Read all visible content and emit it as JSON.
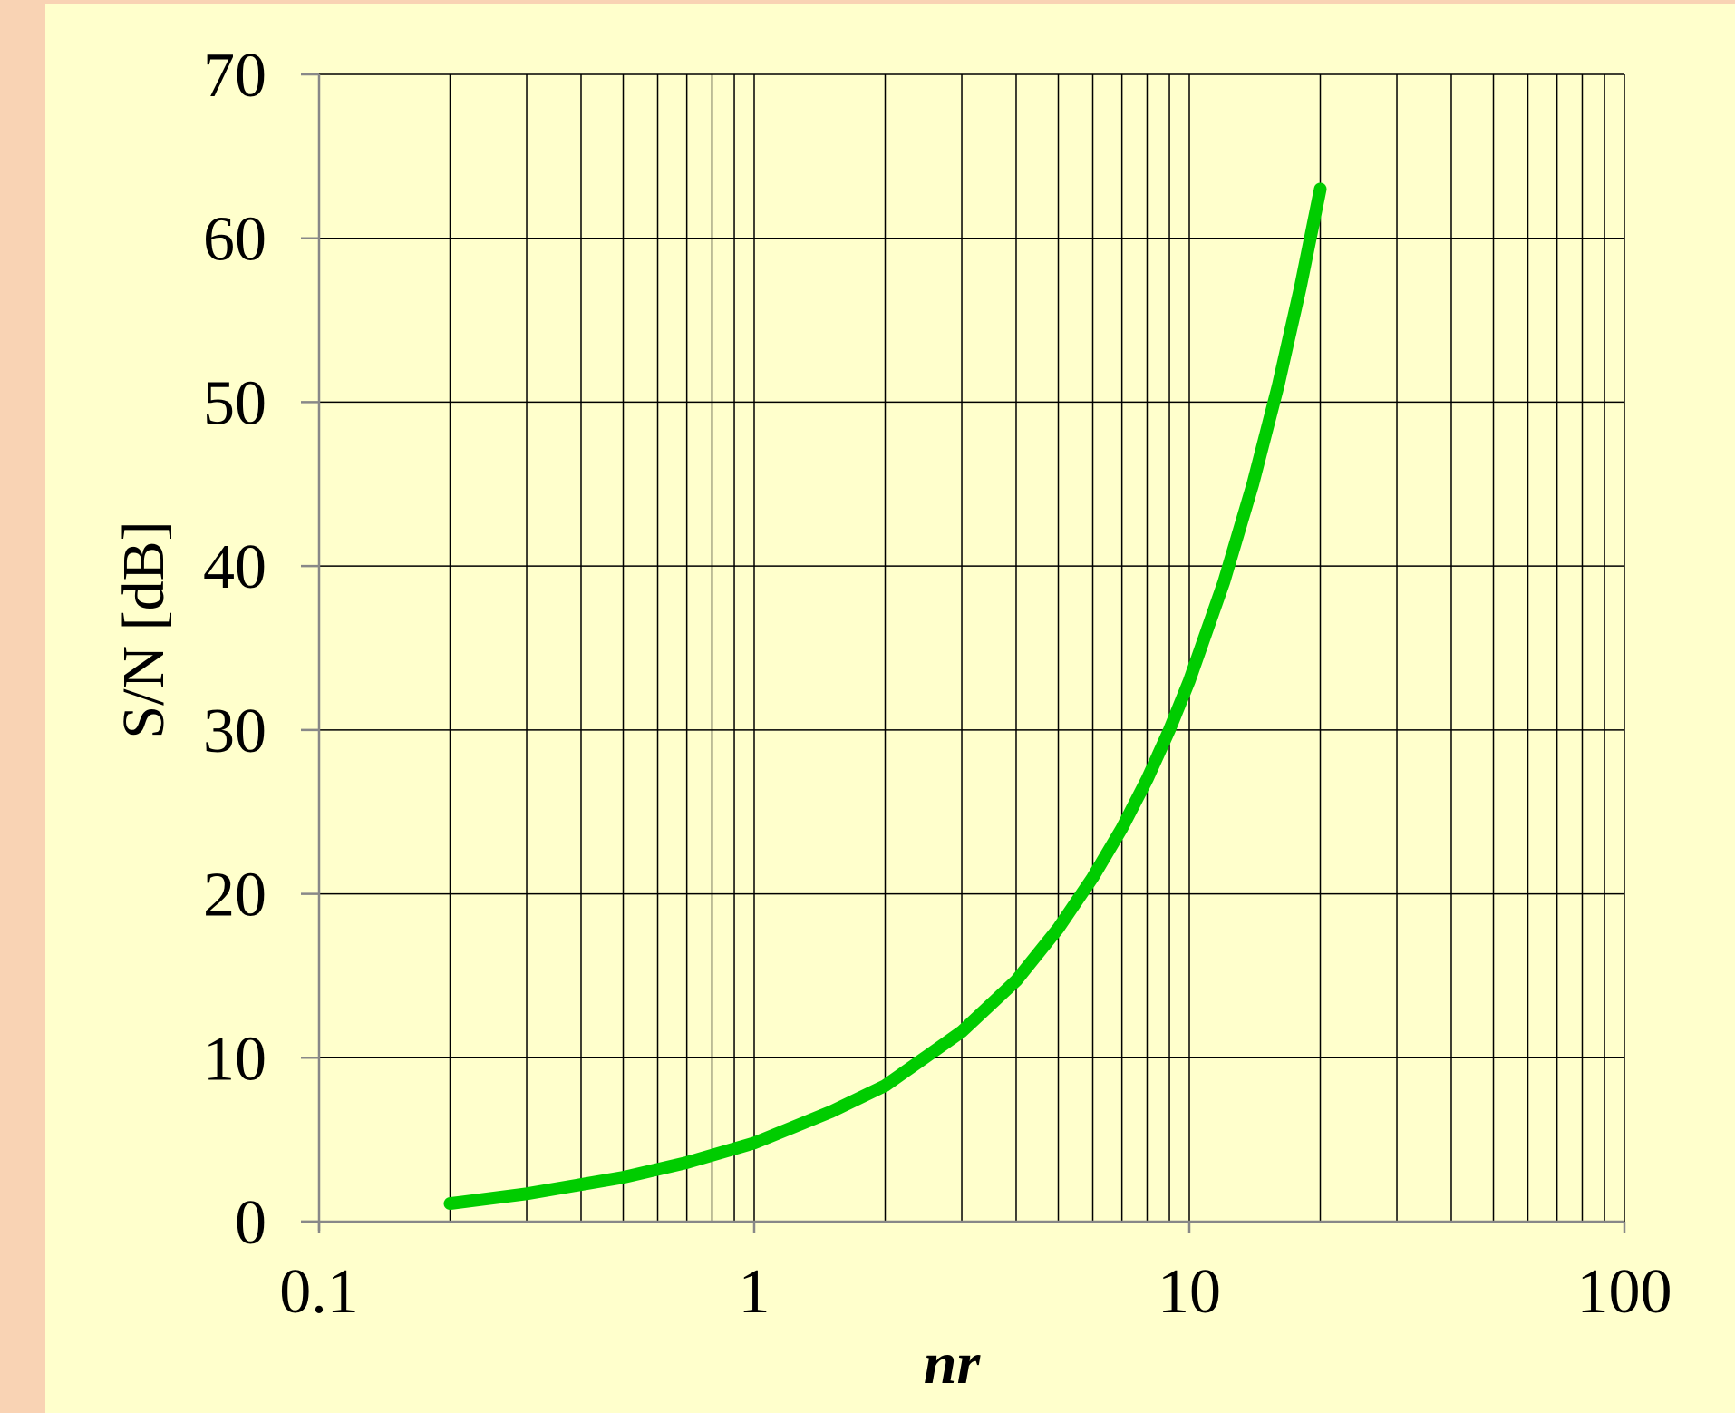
{
  "chart_data": {
    "type": "line",
    "title": "",
    "xlabel": "nr",
    "ylabel": "S/N [dB]",
    "x_scale": "log",
    "xlim": [
      0.1,
      100
    ],
    "ylim": [
      0,
      70
    ],
    "x_ticks": [
      "0.1",
      "1",
      "10",
      "100"
    ],
    "y_ticks": [
      "0",
      "10",
      "20",
      "30",
      "40",
      "50",
      "60",
      "70"
    ],
    "grid": true,
    "legend": "none",
    "series": [
      {
        "color": "#00cc00",
        "x": [
          0.2,
          0.3,
          0.5,
          0.7,
          1,
          1.5,
          2,
          3,
          4,
          5,
          6,
          7,
          8,
          9,
          10,
          12,
          14,
          16,
          18,
          20
        ],
        "y": [
          1.1,
          1.7,
          2.7,
          3.6,
          4.8,
          6.7,
          8.3,
          11.6,
          14.7,
          17.9,
          21.0,
          24.0,
          27.0,
          30.0,
          33.0,
          39.0,
          45.0,
          51.0,
          57.0,
          63.0
        ]
      }
    ]
  }
}
